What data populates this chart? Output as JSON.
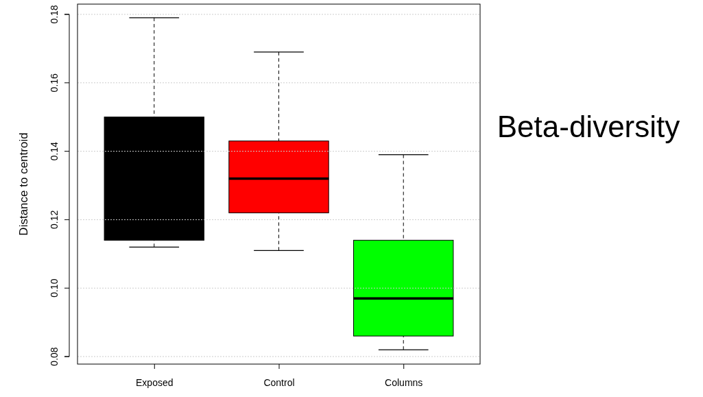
{
  "chart_data": {
    "type": "box",
    "ylabel": "Distance to centroid",
    "categories": [
      "Exposed",
      "Control",
      "Columns"
    ],
    "boxes": [
      {
        "low": 0.112,
        "q1": 0.114,
        "median": null,
        "q3": 0.15,
        "high": 0.179
      },
      {
        "low": 0.111,
        "q1": 0.122,
        "median": 0.132,
        "q3": 0.143,
        "high": 0.169
      },
      {
        "low": 0.082,
        "q1": 0.086,
        "median": 0.097,
        "q3": 0.114,
        "high": 0.139
      }
    ],
    "colors": [
      "#000000",
      "#ff0000",
      "#00ff00"
    ],
    "ylim": [
      0.0778,
      0.183
    ],
    "yticks": [
      {
        "value": 0.08,
        "label": "0.08"
      },
      {
        "value": 0.1,
        "label": "0.10"
      },
      {
        "value": 0.12,
        "label": "0.12"
      },
      {
        "value": 0.14,
        "label": "0.14"
      },
      {
        "value": 0.16,
        "label": "0.16"
      },
      {
        "value": 0.18,
        "label": "0.18"
      }
    ],
    "grid": "y",
    "annotations": [
      "Beta-diversity"
    ]
  }
}
